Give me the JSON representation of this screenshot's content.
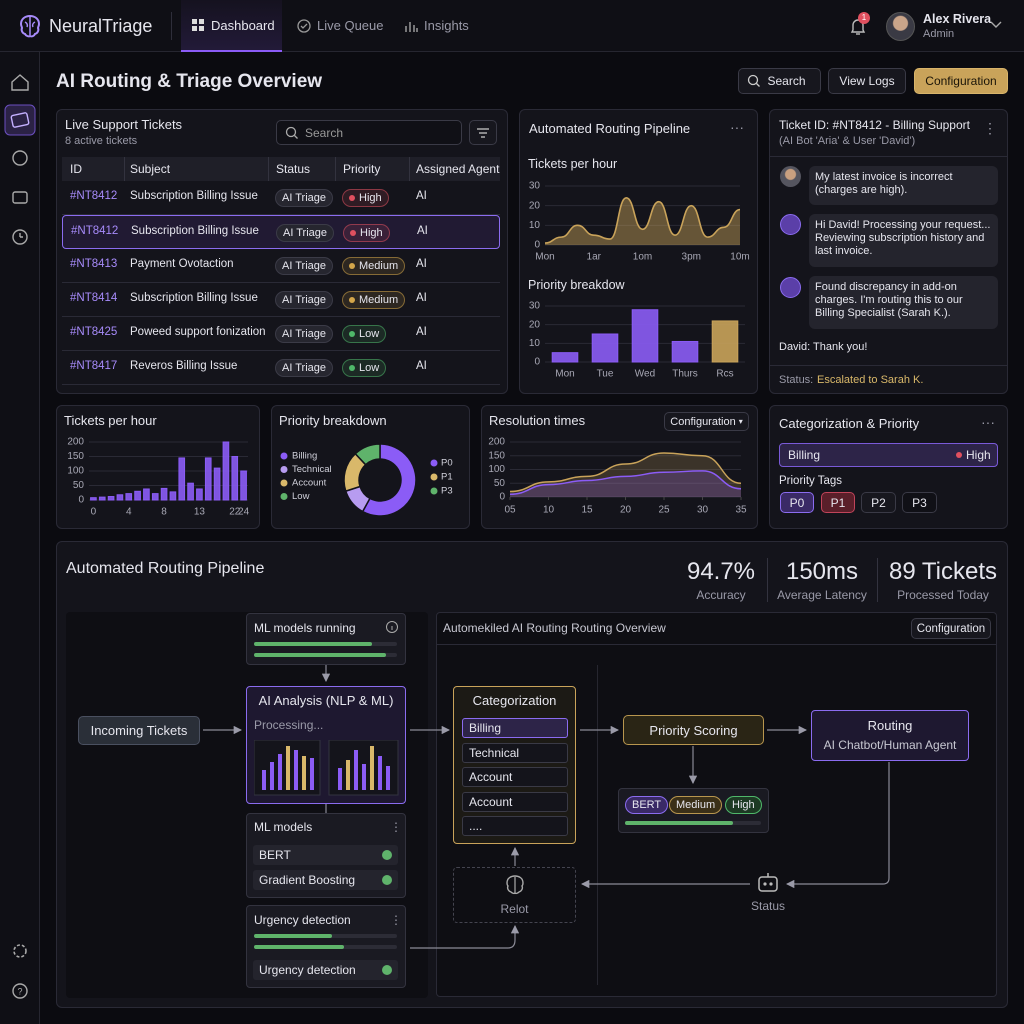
{
  "nav": {
    "brand": "NeuralTriage",
    "tabs": [
      "Dashboard",
      "Live Queue",
      "Insights"
    ],
    "notifications": "1",
    "user": "Alex Rivera",
    "role": "Admin"
  },
  "header": {
    "title": "AI Routing & Triage Overview",
    "search": "Search",
    "view_logs": "View Logs",
    "configuration": "Configuration"
  },
  "tickets": {
    "title": "Live Support Tickets",
    "subtitle": "8 active tickets",
    "search": "Search",
    "columns": [
      "ID",
      "Subject",
      "Status",
      "Priority",
      "Assigned Agent"
    ],
    "rows": [
      [
        "#NT8412",
        "Subscription Billing Issue",
        "AI Triage",
        "High",
        "AI"
      ],
      [
        "#NT8412",
        "Subscription Billing Issue",
        "AI Triage",
        "High",
        "AI"
      ],
      [
        "#NT8413",
        "Payment Ovotaction",
        "AI Triage",
        "Medium",
        "AI"
      ],
      [
        "#NT8414",
        "Subscription Billing Issue",
        "AI Triage",
        "Medium",
        "AI"
      ],
      [
        "#NT8425",
        "Poweed support fonization",
        "AI Triage",
        "Low",
        "AI"
      ],
      [
        "#NT8417",
        "Reveros Billing Issue",
        "AI Triage",
        "Low",
        "AI"
      ]
    ],
    "selected_row": 1,
    "priority_colors": {
      "High": "#e0505f",
      "Medium": "#d4a64a",
      "Low": "#4fb86a"
    }
  },
  "pipeline": {
    "title": "Automated Routing Pipeline"
  },
  "chat": {
    "title": "Ticket ID: #NT8412 - Billing Support",
    "subtitle": "(AI Bot 'Aria' & User 'David')",
    "messages": [
      "My latest invoice is incorrect (charges are high).",
      "Hi David! Processing your request... Reviewing subscription history and last invoice.",
      "Found discrepancy in add-on charges. I'm routing this to our Billing Specialist (Sarah K.)."
    ],
    "reply": "David: Thank you!",
    "status_label": "Status:",
    "status": "Escalated to Sarah K."
  },
  "resolution": {
    "dropdown": "Configuration"
  },
  "categorization": {
    "title": "Categorization & Priority",
    "category": "Billing",
    "priority": "High",
    "tags_label": "Priority Tags",
    "tags": [
      "P0",
      "P1",
      "P2",
      "P3"
    ]
  },
  "routing": {
    "title": "Automated Routing Pipeline",
    "stats": [
      {
        "value": "94.7%",
        "label": "Accuracy"
      },
      {
        "value": "150ms",
        "label": "Average Latency"
      },
      {
        "value": "89 Tickets",
        "label": "Processed Today"
      }
    ],
    "diagram": {
      "ml_running": "ML models running",
      "analysis": "AI Analysis (NLP & ML)",
      "processing": "Processing...",
      "ml_models": "ML models",
      "models": [
        "BERT",
        "Gradient Boosting"
      ],
      "urgency": "Urgency detection",
      "urgency_item": "Urgency detection",
      "incoming": "Incoming Tickets",
      "overview": "Automekiled AI Routing Routing Overview",
      "configuration": "Configuration",
      "categorization": "Categorization",
      "categories": [
        "Billing",
        "Technical",
        "Account",
        "Account",
        "...."
      ],
      "priority_scoring": "Priority Scoring",
      "scores": [
        "BERT",
        "Medium",
        "High"
      ],
      "routing": "Routing",
      "routing_target": "AI Chatbot/Human Agent",
      "relot": "Relot",
      "status": "Status"
    }
  },
  "chart_data": [
    {
      "type": "area",
      "title": "Tickets per hour",
      "categories": [
        "Mon",
        null,
        null,
        "1ar",
        null,
        null,
        "1om",
        null,
        null,
        "3pm",
        null,
        null,
        "10m"
      ],
      "values": [
        1,
        4,
        10,
        5,
        3,
        24,
        8,
        22,
        5,
        20,
        4,
        9,
        18
      ],
      "color": "#c9a35a",
      "ylim": [
        0,
        30
      ],
      "yticks": [
        0,
        10,
        20,
        30
      ]
    },
    {
      "type": "bar",
      "title": "Priority breakdow",
      "categories": [
        "Mon",
        "Tue",
        "Wed",
        "Thurs",
        "Rcs"
      ],
      "values": [
        5,
        15,
        28,
        11,
        22
      ],
      "colors": [
        "#8b5cf6",
        "#8b5cf6",
        "#8b5cf6",
        "#8b5cf6",
        "#c9a35a"
      ],
      "ylim": [
        0,
        30
      ],
      "yticks": [
        0,
        10,
        20,
        30
      ]
    },
    {
      "type": "bar",
      "title": "Tickets per hour",
      "categories": [
        "0",
        null,
        null,
        null,
        "4",
        null,
        null,
        null,
        "8",
        null,
        null,
        null,
        "13",
        null,
        null,
        null,
        "22",
        "24"
      ],
      "values": [
        8,
        10,
        12,
        18,
        22,
        30,
        38,
        22,
        40,
        28,
        145,
        58,
        38,
        145,
        110,
        200,
        150,
        100
      ],
      "color": "#8b5cf6",
      "ylim": [
        0,
        200
      ],
      "yticks": [
        0,
        50,
        100,
        150,
        200
      ]
    },
    {
      "type": "donut",
      "title": "Priority breakdown",
      "categories": [
        "Billing",
        "Technical",
        "Account",
        "Low"
      ],
      "values": [
        58,
        12,
        18,
        12
      ],
      "colors": [
        "#8b5cf6",
        "#b79cf0",
        "#d9b86a",
        "#5fb36b"
      ],
      "legend2": {
        "labels": [
          "P0",
          "P1",
          "P3"
        ],
        "colors": [
          "#8b5cf6",
          "#d9b86a",
          "#5fb36b"
        ]
      }
    },
    {
      "type": "line",
      "title": "Resolution times",
      "x": [
        5,
        10,
        15,
        20,
        25,
        30,
        35
      ],
      "series": [
        {
          "color": "#c9a35a",
          "values": [
            20,
            55,
            75,
            120,
            160,
            150,
            50
          ]
        },
        {
          "color": "#8b5cf6",
          "values": [
            10,
            45,
            60,
            75,
            90,
            95,
            30
          ]
        }
      ],
      "xlim": [
        5,
        35
      ],
      "xticks": [
        {
          "value": 5,
          "label": "05"
        },
        10,
        15,
        20,
        25,
        30,
        35
      ],
      "ylim": [
        0,
        200
      ],
      "yticks": [
        0,
        50,
        100,
        150,
        200
      ]
    }
  ]
}
